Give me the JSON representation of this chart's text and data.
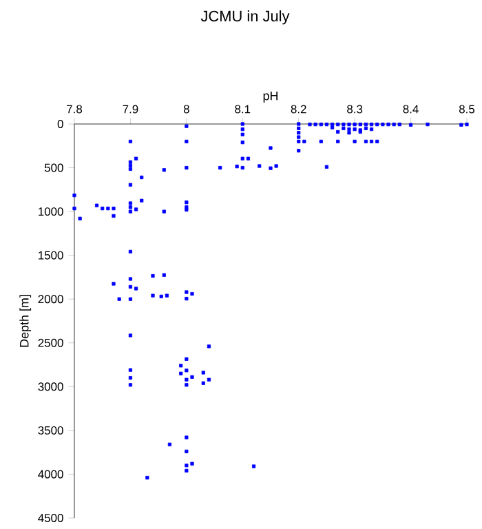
{
  "chart_data": {
    "type": "scatter",
    "title": "JCMU in July",
    "xlabel": "pH",
    "ylabel": "Depth [m]",
    "xlim": [
      7.8,
      8.5
    ],
    "xticks": [
      7.8,
      7.9,
      8,
      8.1,
      8.2,
      8.3,
      8.4,
      8.5
    ],
    "ylim": [
      4500,
      0
    ],
    "yticks": [
      0,
      500,
      1000,
      1500,
      2000,
      2500,
      3000,
      3500,
      4000,
      4500
    ],
    "marker": "square",
    "series": [
      {
        "color": "#0000ff",
        "x": [
          8.22,
          8.23,
          8.24,
          8.25,
          8.26,
          8.27,
          8.28,
          8.29,
          8.3,
          8.31,
          8.32,
          8.33,
          8.34,
          8.35,
          8.36,
          8.37,
          8.38,
          8.4,
          8.43,
          8.49,
          8.5,
          8.26,
          8.28,
          8.29,
          8.3,
          8.31,
          8.32,
          8.33,
          8.27,
          8.29,
          8.31,
          8.21,
          8.24,
          8.27,
          8.3,
          8.32,
          8.33,
          8.34,
          8.2,
          8.2,
          8.2,
          8.2,
          8.2,
          8.2,
          8.1,
          8.1,
          8.1,
          8.1,
          8.1,
          8.1,
          8.11,
          8.15,
          8.15,
          8.16,
          8.13,
          8.09,
          8.06,
          8.25,
          8,
          8,
          8,
          8,
          8,
          8,
          7.96,
          7.96,
          7.92,
          7.92,
          7.9,
          7.9,
          7.9,
          7.9,
          7.9,
          7.9,
          7.9,
          7.9,
          7.9,
          7.91,
          7.91,
          7.8,
          7.8,
          7.81,
          7.84,
          7.85,
          7.86,
          7.87,
          7.87,
          7.94,
          7.96,
          7.87,
          7.9,
          7.9,
          7.9,
          7.91,
          7.94,
          7.955,
          7.965,
          7.88,
          8,
          8,
          8.01,
          7.9,
          8.04,
          8,
          7.99,
          8,
          7.99,
          8,
          8.01,
          8,
          8.03,
          8.03,
          8.04,
          7.9,
          7.9,
          7.9,
          7.97,
          8,
          8,
          8,
          8.01,
          8,
          8.12,
          7.93
        ],
        "values": [
          5,
          5,
          5,
          5,
          5,
          5,
          5,
          5,
          5,
          5,
          5,
          5,
          5,
          5,
          5,
          5,
          5,
          10,
          5,
          10,
          5,
          40,
          50,
          60,
          60,
          70,
          50,
          60,
          90,
          100,
          90,
          200,
          200,
          200,
          200,
          200,
          200,
          200,
          0,
          50,
          100,
          150,
          200,
          305,
          0,
          60,
          120,
          210,
          395,
          500,
          395,
          275,
          505,
          480,
          480,
          485,
          500,
          490,
          25,
          200,
          500,
          895,
          950,
          980,
          525,
          1000,
          610,
          875,
          200,
          435,
          475,
          515,
          695,
          905,
          950,
          1000,
          1458,
          395,
          975,
          815,
          965,
          1080,
          930,
          965,
          965,
          965,
          1050,
          1735,
          1725,
          1825,
          1770,
          1860,
          2000,
          1880,
          1960,
          1970,
          1960,
          2000,
          1920,
          1995,
          1940,
          2415,
          2540,
          2685,
          2760,
          2815,
          2850,
          2920,
          2890,
          2980,
          2840,
          2960,
          2920,
          2810,
          2900,
          2980,
          3660,
          3580,
          3740,
          3900,
          3880,
          3960,
          3910,
          4040
        ]
      }
    ]
  }
}
